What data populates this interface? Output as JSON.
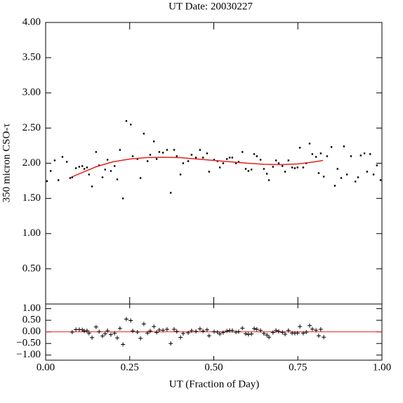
{
  "chart_data": [
    {
      "type": "scatter",
      "title": "UT Date: 20030227",
      "y_label": "350 micron CSO-τ",
      "xlim": [
        0,
        1
      ],
      "xticks": [
        0,
        0.25,
        0.5,
        0.75,
        1
      ],
      "ylim": [
        0,
        4
      ],
      "yticks": [
        {
          "value": 0.5,
          "label": "0.50"
        },
        {
          "value": 1,
          "label": "1.00"
        },
        {
          "value": 1.5,
          "label": "1.50"
        },
        {
          "value": 2,
          "label": "2.00"
        },
        {
          "value": 2.5,
          "label": "2.50"
        },
        {
          "value": 3,
          "label": "3.00"
        },
        {
          "value": 3.5,
          "label": "3.50"
        },
        {
          "value": 4,
          "label": "4.00"
        }
      ],
      "series": [
        {
          "kind": "points",
          "color": "#000000",
          "x": [
            0.004,
            0.015,
            0.027,
            0.038,
            0.05,
            0.063,
            0.073,
            0.079,
            0.09,
            0.1,
            0.109,
            0.115,
            0.123,
            0.129,
            0.138,
            0.15,
            0.159,
            0.169,
            0.177,
            0.184,
            0.194,
            0.205,
            0.213,
            0.221,
            0.23,
            0.24,
            0.253,
            0.259,
            0.273,
            0.282,
            0.292,
            0.303,
            0.311,
            0.322,
            0.33,
            0.338,
            0.349,
            0.361,
            0.372,
            0.382,
            0.39,
            0.401,
            0.409,
            0.424,
            0.434,
            0.447,
            0.459,
            0.468,
            0.48,
            0.486,
            0.501,
            0.511,
            0.518,
            0.528,
            0.539,
            0.547,
            0.555,
            0.566,
            0.574,
            0.585,
            0.595,
            0.603,
            0.612,
            0.62,
            0.628,
            0.639,
            0.649,
            0.658,
            0.664,
            0.676,
            0.685,
            0.693,
            0.704,
            0.712,
            0.722,
            0.733,
            0.741,
            0.749,
            0.756,
            0.766,
            0.775,
            0.785,
            0.793,
            0.804,
            0.812,
            0.818,
            0.827,
            0.837,
            0.85,
            0.86,
            0.868,
            0.879,
            0.887,
            0.896,
            0.908,
            0.921,
            0.929,
            0.937,
            0.948,
            0.956,
            0.965,
            0.975,
            0.985,
            0.996
          ],
          "values": [
            1.745,
            1.89,
            2.04,
            1.76,
            2.09,
            2.02,
            1.79,
            1.8,
            1.93,
            1.95,
            1.96,
            1.92,
            1.94,
            1.84,
            1.67,
            2.16,
            1.97,
            1.8,
            1.91,
            2.05,
            1.89,
            1.96,
            1.77,
            2.19,
            1.5,
            2.6,
            2.55,
            2.1,
            2.06,
            1.79,
            2.42,
            2.03,
            2.12,
            2.31,
            2.06,
            2.16,
            2.15,
            2.19,
            1.58,
            2.19,
            2.1,
            1.84,
            2.0,
            2.03,
            2.12,
            2.08,
            2.19,
            2.08,
            2.14,
            1.88,
            2.05,
            2.03,
            1.94,
            2.0,
            2.06,
            2.08,
            2.08,
            2.0,
            2.02,
            2.16,
            1.92,
            1.89,
            1.91,
            2.13,
            2.1,
            2.05,
            1.92,
            1.85,
            1.76,
            1.95,
            2.04,
            2.0,
            1.96,
            1.88,
            2.04,
            1.94,
            1.93,
            1.94,
            2.22,
            1.94,
            2.0,
            2.28,
            2.13,
            2.09,
            1.86,
            2.14,
            1.81,
            2.1,
            2.23,
            1.68,
            1.92,
            1.79,
            2.24,
            1.84,
            2.1,
            1.74,
            1.8,
            2.11,
            2.14,
            1.88,
            2.13,
            1.84,
            1.97,
            1.76
          ]
        },
        {
          "kind": "line",
          "color": "#e8221c",
          "x": [
            0.08,
            0.15,
            0.2,
            0.25,
            0.3,
            0.35,
            0.4,
            0.45,
            0.5,
            0.55,
            0.6,
            0.65,
            0.7,
            0.75,
            0.8,
            0.825
          ],
          "values": [
            1.81,
            1.95,
            2.02,
            2.06,
            2.08,
            2.085,
            2.08,
            2.06,
            2.04,
            2.02,
            2.0,
            1.985,
            1.98,
            1.99,
            2.02,
            2.04
          ]
        }
      ]
    },
    {
      "type": "scatter",
      "x_label": "UT (Fraction of Day)",
      "xlim": [
        0,
        1
      ],
      "xticks": [
        {
          "value": 0,
          "label": "0.00"
        },
        {
          "value": 0.25,
          "label": "0.25"
        },
        {
          "value": 0.5,
          "label": "0.50"
        },
        {
          "value": 0.75,
          "label": "0.75"
        },
        {
          "value": 1,
          "label": "1.00"
        }
      ],
      "ylim": [
        -1.22,
        1.2
      ],
      "yticks": [
        {
          "value": -1,
          "label": "−1.00"
        },
        {
          "value": -0.5,
          "label": "−0.50"
        },
        {
          "value": 0,
          "label": "0.00"
        },
        {
          "value": 0.5,
          "label": "0.50"
        },
        {
          "value": 1,
          "label": "1.00"
        }
      ],
      "reference_line": {
        "value": 0,
        "color": "#e8221c"
      },
      "series": [
        {
          "kind": "plus",
          "color": "#000000",
          "x": [
            0.079,
            0.09,
            0.1,
            0.109,
            0.115,
            0.123,
            0.129,
            0.138,
            0.15,
            0.159,
            0.169,
            0.177,
            0.184,
            0.194,
            0.205,
            0.213,
            0.221,
            0.23,
            0.24,
            0.253,
            0.259,
            0.273,
            0.282,
            0.292,
            0.303,
            0.311,
            0.322,
            0.33,
            0.338,
            0.349,
            0.361,
            0.372,
            0.382,
            0.39,
            0.401,
            0.409,
            0.424,
            0.434,
            0.447,
            0.459,
            0.468,
            0.48,
            0.486,
            0.501,
            0.511,
            0.518,
            0.528,
            0.539,
            0.547,
            0.555,
            0.566,
            0.574,
            0.585,
            0.595,
            0.603,
            0.612,
            0.62,
            0.628,
            0.639,
            0.649,
            0.658,
            0.664,
            0.676,
            0.685,
            0.693,
            0.704,
            0.712,
            0.722,
            0.733,
            0.741,
            0.749,
            0.756,
            0.766,
            0.775,
            0.785,
            0.793,
            0.804,
            0.812,
            0.818,
            0.827
          ],
          "values": [
            -0.01,
            0.1,
            0.1,
            0.09,
            0.04,
            0.05,
            -0.06,
            -0.25,
            0.21,
            0.01,
            -0.18,
            -0.08,
            0.05,
            -0.12,
            -0.06,
            -0.26,
            0.15,
            -0.54,
            0.55,
            0.49,
            0.04,
            -0.01,
            -0.28,
            0.34,
            -0.05,
            0.04,
            0.23,
            -0.02,
            0.08,
            0.07,
            0.11,
            -0.5,
            0.11,
            0.02,
            -0.24,
            -0.07,
            -0.04,
            0.05,
            0.02,
            0.13,
            0.03,
            0.09,
            -0.17,
            0.01,
            -0.01,
            -0.09,
            -0.03,
            0.04,
            0.06,
            0.06,
            -0.01,
            0.01,
            0.16,
            -0.08,
            -0.11,
            -0.09,
            0.14,
            0.11,
            0.06,
            -0.07,
            -0.14,
            -0.23,
            -0.03,
            0.06,
            0.02,
            -0.02,
            -0.1,
            0.06,
            -0.05,
            -0.06,
            -0.05,
            0.23,
            -0.06,
            -0.01,
            0.27,
            0.12,
            0.07,
            -0.17,
            0.11,
            -0.23
          ]
        }
      ]
    }
  ]
}
